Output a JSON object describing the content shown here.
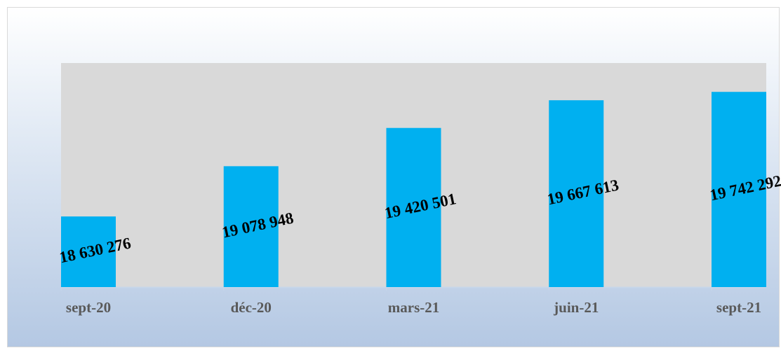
{
  "chart_data": {
    "type": "bar",
    "categories": [
      "sept-20",
      "déc-20",
      "mars-21",
      "juin-21",
      "sept-21"
    ],
    "values": [
      18630276,
      19078948,
      19420501,
      19667613,
      19742292
    ],
    "value_labels": [
      "18 630 276",
      "19 078 948",
      "19 420 501",
      "19 667 613",
      "19 742 292"
    ],
    "color": "#00b0f0",
    "ylim": [
      18000000,
      20000000
    ]
  }
}
